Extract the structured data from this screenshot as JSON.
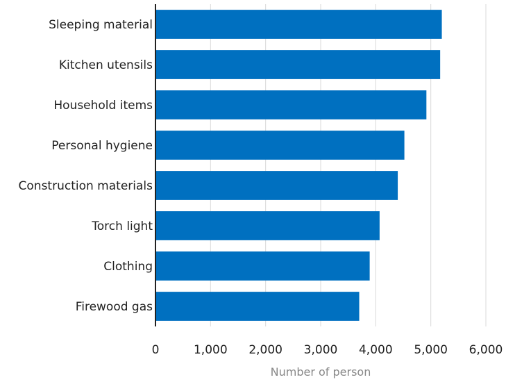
{
  "chart_data": {
    "type": "bar",
    "orientation": "horizontal",
    "categories": [
      "Sleeping material",
      "Kitchen utensils",
      "Household items",
      "Personal hygiene",
      "Construction materials",
      "Torch light",
      "Clothing",
      "Firewood gas"
    ],
    "values": [
      5200,
      5170,
      4920,
      4520,
      4400,
      4070,
      3890,
      3700
    ],
    "xlabel": "Number of person",
    "ylabel": "",
    "xlim": [
      0,
      6000
    ],
    "xticks": [
      0,
      1000,
      2000,
      3000,
      4000,
      5000,
      6000
    ],
    "xtick_labels": [
      "0",
      "1,000",
      "2,000",
      "3,000",
      "4,000",
      "5,000",
      "6,000"
    ],
    "grid": "vertical",
    "bar_color": "#0070C0",
    "grid_color": "#d9d9d9",
    "axis_color": "#222222"
  }
}
